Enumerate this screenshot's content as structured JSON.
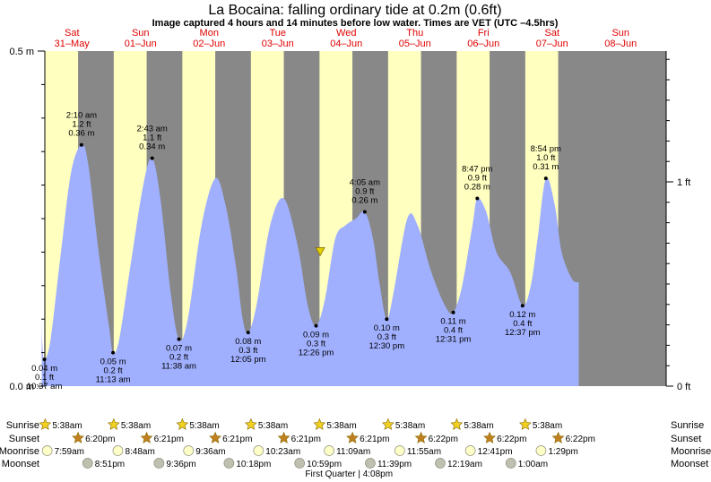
{
  "header": {
    "title": "La Bocaina: falling  ordinary tide at 0.2m (0.6ft)",
    "subtitle": "Image captured 4 hours and 14 minutes before low water. Times are VET (UTC –4.5hrs)"
  },
  "colors": {
    "night": "#888888",
    "day": "#ffffc0",
    "water": "#a0b0ff",
    "day_label": "#e00000",
    "marker": "#e0d000"
  },
  "chart_data": {
    "type": "area",
    "title": "La Bocaina: falling  ordinary tide at 0.2m (0.6ft)",
    "x_range_days": [
      0,
      8.5
    ],
    "ylim": [
      0,
      0.5
    ],
    "y_unit_left": "m",
    "y_unit_right": "ft",
    "yticks_left": [
      {
        "v": 0.5,
        "label": "0.5 m"
      },
      {
        "v": 0.0,
        "label": "0.0 m"
      }
    ],
    "yticks_right": [
      {
        "v": 0.3048,
        "label": "1 ft"
      },
      {
        "v": 0.0,
        "label": "0 ft"
      }
    ],
    "days": [
      {
        "dow": "Sat",
        "date": "31–May"
      },
      {
        "dow": "Sun",
        "date": "01–Jun"
      },
      {
        "dow": "Mon",
        "date": "02–Jun"
      },
      {
        "dow": "Tue",
        "date": "03–Jun"
      },
      {
        "dow": "Wed",
        "date": "04–Jun"
      },
      {
        "dow": "Thu",
        "date": "05–Jun"
      },
      {
        "dow": "Fri",
        "date": "06–Jun"
      },
      {
        "dow": "Sat",
        "date": "07–Jun"
      },
      {
        "dow": "Sun",
        "date": "08–Jun"
      }
    ],
    "tide_curve": [
      [
        0.02,
        0.1
      ],
      [
        0.03,
        0.06
      ],
      [
        0.06,
        0.04
      ],
      [
        0.15,
        0.07
      ],
      [
        0.3,
        0.2
      ],
      [
        0.45,
        0.32
      ],
      [
        0.6,
        0.36
      ],
      [
        0.7,
        0.33
      ],
      [
        0.85,
        0.2
      ],
      [
        1.0,
        0.09
      ],
      [
        1.06,
        0.05
      ],
      [
        1.15,
        0.07
      ],
      [
        1.3,
        0.17
      ],
      [
        1.5,
        0.3
      ],
      [
        1.63,
        0.34
      ],
      [
        1.75,
        0.28
      ],
      [
        1.9,
        0.14
      ],
      [
        2.02,
        0.07
      ],
      [
        2.15,
        0.1
      ],
      [
        2.35,
        0.24
      ],
      [
        2.55,
        0.31
      ],
      [
        2.7,
        0.27
      ],
      [
        2.85,
        0.18
      ],
      [
        2.95,
        0.1
      ],
      [
        3.03,
        0.08
      ],
      [
        3.15,
        0.12
      ],
      [
        3.35,
        0.24
      ],
      [
        3.55,
        0.28
      ],
      [
        3.75,
        0.21
      ],
      [
        3.9,
        0.12
      ],
      [
        4.02,
        0.09
      ],
      [
        4.15,
        0.13
      ],
      [
        4.3,
        0.22
      ],
      [
        4.45,
        0.24
      ],
      [
        4.6,
        0.25
      ],
      [
        4.73,
        0.26
      ],
      [
        4.85,
        0.22
      ],
      [
        4.95,
        0.15
      ],
      [
        5.05,
        0.1
      ],
      [
        5.15,
        0.14
      ],
      [
        5.35,
        0.25
      ],
      [
        5.5,
        0.24
      ],
      [
        5.7,
        0.17
      ],
      [
        5.9,
        0.12
      ],
      [
        6.02,
        0.11
      ],
      [
        6.15,
        0.15
      ],
      [
        6.3,
        0.24
      ],
      [
        6.37,
        0.28
      ],
      [
        6.5,
        0.26
      ],
      [
        6.65,
        0.2
      ],
      [
        6.85,
        0.17
      ],
      [
        7.03,
        0.12
      ],
      [
        7.15,
        0.15
      ],
      [
        7.25,
        0.22
      ],
      [
        7.37,
        0.31
      ],
      [
        7.5,
        0.27
      ],
      [
        7.6,
        0.2
      ],
      [
        7.75,
        0.16
      ],
      [
        7.85,
        0.155
      ]
    ],
    "extremes": [
      {
        "t": 0.06,
        "h": 0.04,
        "time": "10:37 am",
        "ft": "0.1 ft",
        "m": "0.04 m",
        "kind": "low"
      },
      {
        "t": 0.6,
        "h": 0.36,
        "time": "2:10 am",
        "ft": "1.2 ft",
        "m": "0.36 m",
        "kind": "high"
      },
      {
        "t": 1.06,
        "h": 0.05,
        "time": "11:13 am",
        "ft": "0.2 ft",
        "m": "0.05 m",
        "kind": "low"
      },
      {
        "t": 1.63,
        "h": 0.34,
        "time": "2:43 am",
        "ft": "1.1 ft",
        "m": "0.34 m",
        "kind": "high"
      },
      {
        "t": 2.02,
        "h": 0.07,
        "time": "11:38 am",
        "ft": "0.2 ft",
        "m": "0.07 m",
        "kind": "low"
      },
      {
        "t": 3.03,
        "h": 0.08,
        "time": "12:05 pm",
        "ft": "0.3 ft",
        "m": "0.08 m",
        "kind": "low"
      },
      {
        "t": 4.02,
        "h": 0.09,
        "time": "12:26 pm",
        "ft": "0.3 ft",
        "m": "0.09 m",
        "kind": "low"
      },
      {
        "t": 4.73,
        "h": 0.26,
        "time": "4:05 am",
        "ft": "0.9 ft",
        "m": "0.26 m",
        "kind": "high"
      },
      {
        "t": 5.05,
        "h": 0.1,
        "time": "12:30 pm",
        "ft": "0.3 ft",
        "m": "0.10 m",
        "kind": "low"
      },
      {
        "t": 6.02,
        "h": 0.11,
        "time": "12:31 pm",
        "ft": "0.4 ft",
        "m": "0.11 m",
        "kind": "low"
      },
      {
        "t": 6.37,
        "h": 0.28,
        "time": "8:47 pm",
        "ft": "0.9 ft",
        "m": "0.28 m",
        "kind": "high"
      },
      {
        "t": 7.03,
        "h": 0.12,
        "time": "12:37 pm",
        "ft": "0.4 ft",
        "m": "0.12 m",
        "kind": "low"
      },
      {
        "t": 7.37,
        "h": 0.31,
        "time": "8:54 pm",
        "ft": "1.0 ft",
        "m": "0.31 m",
        "kind": "high"
      }
    ],
    "current_marker": {
      "t": 4.08,
      "h": 0.2
    }
  },
  "astro": {
    "row_labels": {
      "sunrise": "Sunrise",
      "sunset": "Sunset",
      "moonrise": "Moonrise",
      "moonset": "Moonset"
    },
    "sunrise": [
      {
        "t": 0.07,
        "label": "5:38am"
      },
      {
        "t": 1.07,
        "label": "5:38am"
      },
      {
        "t": 2.07,
        "label": "5:38am"
      },
      {
        "t": 3.07,
        "label": "5:38am"
      },
      {
        "t": 4.07,
        "label": "5:38am"
      },
      {
        "t": 5.07,
        "label": "5:38am"
      },
      {
        "t": 6.07,
        "label": "5:38am"
      },
      {
        "t": 7.07,
        "label": "5:38am"
      }
    ],
    "sunset": [
      {
        "t": 0.55,
        "label": "6:20pm"
      },
      {
        "t": 1.55,
        "label": "6:21pm"
      },
      {
        "t": 2.55,
        "label": "6:21pm"
      },
      {
        "t": 3.55,
        "label": "6:21pm"
      },
      {
        "t": 4.55,
        "label": "6:21pm"
      },
      {
        "t": 5.55,
        "label": "6:22pm"
      },
      {
        "t": 6.55,
        "label": "6:22pm"
      },
      {
        "t": 7.55,
        "label": "6:22pm"
      }
    ],
    "moonrise": [
      {
        "t": 0.1,
        "label": "7:59am"
      },
      {
        "t": 1.13,
        "label": "8:48am"
      },
      {
        "t": 2.16,
        "label": "9:36am"
      },
      {
        "t": 3.18,
        "label": "10:23am"
      },
      {
        "t": 4.21,
        "label": "11:09am"
      },
      {
        "t": 5.24,
        "label": "11:55am"
      },
      {
        "t": 6.27,
        "label": "12:41pm"
      },
      {
        "t": 7.3,
        "label": "1:29pm"
      }
    ],
    "moonset": [
      {
        "t": 0.69,
        "label": "8:51pm"
      },
      {
        "t": 1.73,
        "label": "9:36pm"
      },
      {
        "t": 2.75,
        "label": "10:18pm"
      },
      {
        "t": 3.78,
        "label": "10:59pm"
      },
      {
        "t": 4.81,
        "label": "11:39pm"
      },
      {
        "t": 5.83,
        "label": "12:19am"
      },
      {
        "t": 6.86,
        "label": "1:00am"
      }
    ],
    "moon_phase_note": "First Quarter | 4:08pm"
  }
}
